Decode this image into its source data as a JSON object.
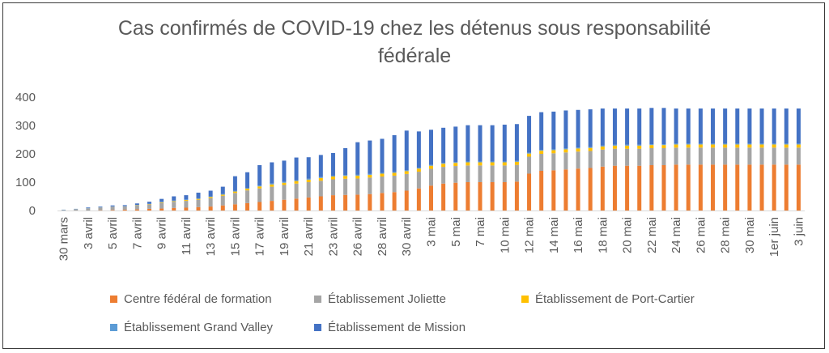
{
  "chart_data": {
    "type": "bar",
    "stacked": true,
    "title_line1": "Cas confirmés de COVID-19 chez les détenus sous responsabilité",
    "title_line2": "fédérale",
    "xlabel": "",
    "ylabel": "",
    "ylim": [
      0,
      400
    ],
    "yticks": [
      "0",
      "100",
      "200",
      "300",
      "400"
    ],
    "grid": false,
    "legend_position": "bottom",
    "x_tick_labels": [
      "30 mars",
      "3 avril",
      "5 avril",
      "7 avril",
      "9 avril",
      "11 avril",
      "13 avril",
      "15 avril",
      "17 avril",
      "19 avril",
      "21 avril",
      "23 avril",
      "26 avril",
      "28 avril",
      "30 avril",
      "3 mai",
      "5 mai",
      "7 mai",
      "10 mai",
      "12 mai",
      "14 mai",
      "16 mai",
      "18 mai",
      "20 mai",
      "22 mai",
      "24 mai",
      "26 mai",
      "28 mai",
      "30 mai",
      "1er juin",
      "3 juin"
    ],
    "bar_count": 61,
    "series": [
      {
        "name": "Centre fédéral de formation",
        "color": "#ED7D31",
        "values": [
          0,
          0,
          0,
          1,
          2,
          3,
          4,
          6,
          7,
          9,
          10,
          12,
          14,
          18,
          22,
          26,
          30,
          34,
          38,
          42,
          46,
          50,
          54,
          55,
          56,
          58,
          62,
          65,
          70,
          78,
          88,
          95,
          98,
          100,
          100,
          100,
          100,
          102,
          130,
          140,
          142,
          145,
          148,
          150,
          155,
          158,
          158,
          158,
          160,
          160,
          162,
          162,
          162,
          162,
          162,
          162,
          162,
          162,
          162,
          162,
          162
        ]
      },
      {
        "name": "Établissement Joliette",
        "color": "#A5A5A5",
        "values": [
          2,
          5,
          8,
          10,
          12,
          12,
          14,
          16,
          20,
          22,
          24,
          26,
          30,
          34,
          40,
          45,
          48,
          50,
          52,
          53,
          54,
          55,
          56,
          57,
          57,
          58,
          58,
          58,
          59,
          59,
          59,
          59,
          59,
          59,
          59,
          59,
          59,
          59,
          60,
          60,
          60,
          60,
          60,
          60,
          60,
          60,
          60,
          60,
          60,
          60,
          60,
          60,
          60,
          60,
          60,
          60,
          60,
          60,
          60,
          60,
          60
        ]
      },
      {
        "name": "Établissement de Port-Cartier",
        "color": "#FFC000",
        "values": [
          0,
          0,
          0,
          0,
          0,
          0,
          1,
          1,
          2,
          2,
          3,
          3,
          4,
          4,
          5,
          6,
          7,
          8,
          8,
          9,
          9,
          10,
          10,
          10,
          10,
          10,
          10,
          10,
          10,
          11,
          11,
          11,
          11,
          11,
          11,
          11,
          11,
          11,
          11,
          11,
          11,
          11,
          11,
          11,
          11,
          11,
          11,
          11,
          11,
          11,
          11,
          11,
          11,
          11,
          11,
          11,
          11,
          11,
          11,
          11,
          11
        ]
      },
      {
        "name": "Établissement Grand Valley",
        "color": "#5B9BD5",
        "values": [
          1,
          1,
          1,
          1,
          1,
          1,
          1,
          1,
          2,
          2,
          2,
          2,
          2,
          2,
          2,
          2,
          3,
          3,
          3,
          3,
          3,
          3,
          3,
          3,
          3,
          3,
          3,
          3,
          3,
          3,
          3,
          3,
          3,
          3,
          3,
          3,
          3,
          3,
          3,
          3,
          3,
          3,
          3,
          3,
          3,
          3,
          3,
          3,
          3,
          3,
          3,
          3,
          3,
          3,
          3,
          3,
          3,
          3,
          3,
          3,
          3
        ]
      },
      {
        "name": "Établissement de Mission",
        "color": "#4472C4",
        "values": [
          0,
          0,
          2,
          2,
          3,
          3,
          5,
          7,
          10,
          15,
          15,
          20,
          20,
          26,
          52,
          56,
          72,
          75,
          75,
          80,
          76,
          78,
          80,
          95,
          115,
          118,
          120,
          130,
          140,
          128,
          124,
          124,
          125,
          128,
          128,
          128,
          130,
          130,
          130,
          133,
          133,
          134,
          133,
          133,
          131,
          128,
          128,
          128,
          128,
          128,
          124,
          124,
          124,
          124,
          124,
          124,
          124,
          124,
          124,
          124,
          124
        ]
      }
    ]
  }
}
